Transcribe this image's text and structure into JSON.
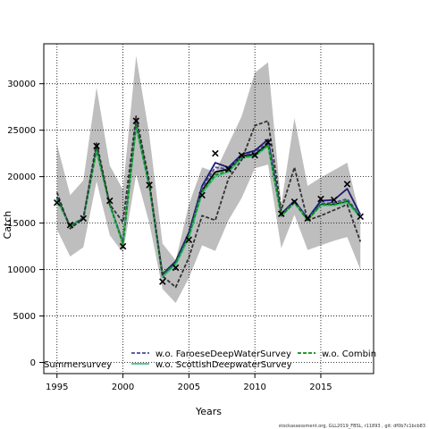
{
  "chart_data": {
    "type": "line",
    "xlabel": "Years",
    "ylabel": "Catch",
    "xlim": [
      1994,
      2019
    ],
    "ylim": [
      -1200,
      34300
    ],
    "x_ticks": [
      1995,
      2000,
      2005,
      2010,
      2015
    ],
    "x_tick_labels": [
      "1995",
      "2000",
      "2005",
      "2010",
      "2015"
    ],
    "y_ticks": [
      0,
      5000,
      10000,
      15000,
      20000,
      25000,
      30000
    ],
    "y_tick_labels": [
      "0",
      "5000",
      "10000",
      "15000",
      "20000",
      "25000",
      "30000"
    ],
    "grid": true,
    "x": [
      1995,
      1996,
      1997,
      1998,
      1999,
      2000,
      2001,
      2002,
      2003,
      2004,
      2005,
      2006,
      2007,
      2008,
      2009,
      2010,
      2011,
      2012,
      2013,
      2014,
      2015,
      2016,
      2017,
      2018
    ],
    "band": {
      "color": "#bebebe",
      "upper": [
        23500,
        18000,
        19600,
        29600,
        21200,
        18600,
        33000,
        24500,
        12800,
        11000,
        17000,
        21000,
        20500,
        23500,
        26500,
        31200,
        32300,
        17000,
        26300,
        19000,
        19900,
        20700,
        21500,
        15500
      ],
      "lower": [
        14300,
        11400,
        12400,
        19500,
        13700,
        11800,
        20200,
        15000,
        7900,
        6400,
        9100,
        12600,
        12000,
        15300,
        17700,
        20900,
        21300,
        12300,
        15900,
        12100,
        12600,
        13100,
        13500,
        10000
      ]
    },
    "observed": {
      "color": "#000000",
      "marker": "x",
      "y": [
        17200,
        14800,
        15500,
        23300,
        17400,
        12500,
        26000,
        19100,
        8700,
        10200,
        13200,
        18000,
        22500,
        20800,
        22300,
        22300,
        23700,
        16000,
        17300,
        15500,
        17600,
        17500,
        19200,
        15700
      ]
    },
    "series": [
      {
        "name": "",
        "color": "#000000",
        "style": "solid",
        "y": [
          17800,
          14600,
          15500,
          23000,
          17000,
          12800,
          25500,
          19000,
          9200,
          10600,
          13500,
          18500,
          20500,
          20800,
          22200,
          22400,
          23500,
          15800,
          17300,
          15400,
          17000,
          17000,
          17300,
          15700
        ]
      },
      {
        "name": "",
        "color": "#191970",
        "style": "solid",
        "y": [
          17800,
          14600,
          15500,
          23200,
          17000,
          12900,
          25800,
          19100,
          9500,
          10900,
          14000,
          19000,
          21500,
          21000,
          22400,
          22800,
          24000,
          16000,
          17400,
          15500,
          17400,
          17500,
          18700,
          15900
        ]
      },
      {
        "name": "w.o. FaroeseDeepWaterSurvey",
        "color": "#4a4a9a",
        "style": "dashed",
        "y": [
          17700,
          14700,
          15600,
          23000,
          17100,
          12700,
          25800,
          19000,
          9300,
          10700,
          13600,
          18800,
          21000,
          20800,
          22300,
          22600,
          23700,
          15900,
          17300,
          15400,
          17100,
          17200,
          17600,
          15800
        ]
      },
      {
        "name": "w.o. ScottishDeepwaterSurvey",
        "color": "#3fbf8f",
        "style": "solid",
        "y": [
          17500,
          14600,
          15400,
          22800,
          16900,
          12700,
          25400,
          18900,
          9200,
          10500,
          13400,
          18200,
          20000,
          20500,
          22000,
          22200,
          23300,
          15700,
          17200,
          15300,
          16900,
          16900,
          17200,
          15600
        ]
      },
      {
        "name": "w.o. Combin",
        "color": "#0f8a0f",
        "style": "dashed",
        "y": [
          17600,
          14700,
          15500,
          22900,
          17000,
          12800,
          25600,
          19000,
          9400,
          10700,
          13700,
          18400,
          20200,
          20600,
          22100,
          22300,
          23400,
          15800,
          17200,
          15300,
          17000,
          17000,
          17400,
          15700
        ]
      },
      {
        "name": "w.o. Summersurvey",
        "color": "#333333",
        "style": "dashed",
        "y": [
          18300,
          14400,
          15500,
          23700,
          17000,
          15100,
          26500,
          19500,
          9300,
          8100,
          11300,
          15800,
          15300,
          19800,
          21800,
          25500,
          26000,
          16400,
          21000,
          15300,
          15800,
          16400,
          17000,
          13000
        ]
      }
    ],
    "legend": {
      "placement": "bottom-center",
      "entries": [
        {
          "label": "w.o. FaroeseDeepWaterSurvey",
          "color": "#4a4a9a",
          "style": "dashed"
        },
        {
          "label": "w.o. Combin",
          "color": "#0f8a0f",
          "style": "dashed"
        },
        {
          "label": "w.o. ScottishDeepwaterSurvey",
          "color": "#3fbf8f",
          "style": "solid"
        }
      ],
      "cut_label": "Summersurvey"
    }
  },
  "footer": "stockassessment.org, GLL2019_FBSL, r11893 , git: df0b7c1bcb83"
}
